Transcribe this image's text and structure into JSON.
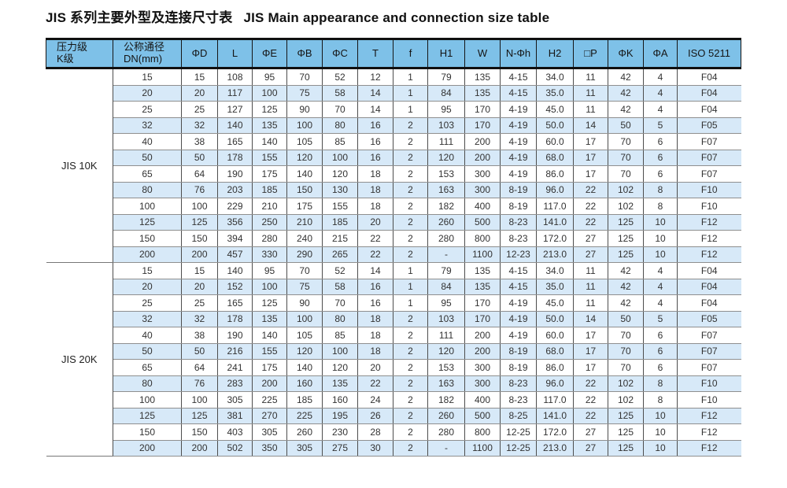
{
  "header": {
    "title_zh": "JIS 系列主要外型及连接尺寸表",
    "title_en": "JIS Main appearance and connection size table"
  },
  "table": {
    "columns": [
      [
        "压力级",
        "K级"
      ],
      [
        "公称通径",
        "DN(mm)"
      ],
      [
        "ΦD"
      ],
      [
        "L"
      ],
      [
        "ΦE"
      ],
      [
        "ΦB"
      ],
      [
        "ΦC"
      ],
      [
        "T"
      ],
      [
        "f"
      ],
      [
        "H1"
      ],
      [
        "W"
      ],
      [
        "N-Φh"
      ],
      [
        "H2"
      ],
      [
        "□P"
      ],
      [
        "ΦK"
      ],
      [
        "ΦA"
      ],
      [
        "ISO 5211"
      ]
    ],
    "groups": [
      {
        "label": "JIS 10K",
        "rows": [
          [
            "15",
            "15",
            "108",
            "95",
            "70",
            "52",
            "12",
            "1",
            "79",
            "135",
            "4-15",
            "34.0",
            "11",
            "42",
            "4",
            "F04"
          ],
          [
            "20",
            "20",
            "117",
            "100",
            "75",
            "58",
            "14",
            "1",
            "84",
            "135",
            "4-15",
            "35.0",
            "11",
            "42",
            "4",
            "F04"
          ],
          [
            "25",
            "25",
            "127",
            "125",
            "90",
            "70",
            "14",
            "1",
            "95",
            "170",
            "4-19",
            "45.0",
            "11",
            "42",
            "4",
            "F04"
          ],
          [
            "32",
            "32",
            "140",
            "135",
            "100",
            "80",
            "16",
            "2",
            "103",
            "170",
            "4-19",
            "50.0",
            "14",
            "50",
            "5",
            "F05"
          ],
          [
            "40",
            "38",
            "165",
            "140",
            "105",
            "85",
            "16",
            "2",
            "111",
            "200",
            "4-19",
            "60.0",
            "17",
            "70",
            "6",
            "F07"
          ],
          [
            "50",
            "50",
            "178",
            "155",
            "120",
            "100",
            "16",
            "2",
            "120",
            "200",
            "4-19",
            "68.0",
            "17",
            "70",
            "6",
            "F07"
          ],
          [
            "65",
            "64",
            "190",
            "175",
            "140",
            "120",
            "18",
            "2",
            "153",
            "300",
            "4-19",
            "86.0",
            "17",
            "70",
            "6",
            "F07"
          ],
          [
            "80",
            "76",
            "203",
            "185",
            "150",
            "130",
            "18",
            "2",
            "163",
            "300",
            "8-19",
            "96.0",
            "22",
            "102",
            "8",
            "F10"
          ],
          [
            "100",
            "100",
            "229",
            "210",
            "175",
            "155",
            "18",
            "2",
            "182",
            "400",
            "8-19",
            "117.0",
            "22",
            "102",
            "8",
            "F10"
          ],
          [
            "125",
            "125",
            "356",
            "250",
            "210",
            "185",
            "20",
            "2",
            "260",
            "500",
            "8-23",
            "141.0",
            "22",
            "125",
            "10",
            "F12"
          ],
          [
            "150",
            "150",
            "394",
            "280",
            "240",
            "215",
            "22",
            "2",
            "280",
            "800",
            "8-23",
            "172.0",
            "27",
            "125",
            "10",
            "F12"
          ],
          [
            "200",
            "200",
            "457",
            "330",
            "290",
            "265",
            "22",
            "2",
            "-",
            "1100",
            "12-23",
            "213.0",
            "27",
            "125",
            "10",
            "F12"
          ]
        ]
      },
      {
        "label": "JIS 20K",
        "rows": [
          [
            "15",
            "15",
            "140",
            "95",
            "70",
            "52",
            "14",
            "1",
            "79",
            "135",
            "4-15",
            "34.0",
            "11",
            "42",
            "4",
            "F04"
          ],
          [
            "20",
            "20",
            "152",
            "100",
            "75",
            "58",
            "16",
            "1",
            "84",
            "135",
            "4-15",
            "35.0",
            "11",
            "42",
            "4",
            "F04"
          ],
          [
            "25",
            "25",
            "165",
            "125",
            "90",
            "70",
            "16",
            "1",
            "95",
            "170",
            "4-19",
            "45.0",
            "11",
            "42",
            "4",
            "F04"
          ],
          [
            "32",
            "32",
            "178",
            "135",
            "100",
            "80",
            "18",
            "2",
            "103",
            "170",
            "4-19",
            "50.0",
            "14",
            "50",
            "5",
            "F05"
          ],
          [
            "40",
            "38",
            "190",
            "140",
            "105",
            "85",
            "18",
            "2",
            "111",
            "200",
            "4-19",
            "60.0",
            "17",
            "70",
            "6",
            "F07"
          ],
          [
            "50",
            "50",
            "216",
            "155",
            "120",
            "100",
            "18",
            "2",
            "120",
            "200",
            "8-19",
            "68.0",
            "17",
            "70",
            "6",
            "F07"
          ],
          [
            "65",
            "64",
            "241",
            "175",
            "140",
            "120",
            "20",
            "2",
            "153",
            "300",
            "8-19",
            "86.0",
            "17",
            "70",
            "6",
            "F07"
          ],
          [
            "80",
            "76",
            "283",
            "200",
            "160",
            "135",
            "22",
            "2",
            "163",
            "300",
            "8-23",
            "96.0",
            "22",
            "102",
            "8",
            "F10"
          ],
          [
            "100",
            "100",
            "305",
            "225",
            "185",
            "160",
            "24",
            "2",
            "182",
            "400",
            "8-23",
            "117.0",
            "22",
            "102",
            "8",
            "F10"
          ],
          [
            "125",
            "125",
            "381",
            "270",
            "225",
            "195",
            "26",
            "2",
            "260",
            "500",
            "8-25",
            "141.0",
            "22",
            "125",
            "10",
            "F12"
          ],
          [
            "150",
            "150",
            "403",
            "305",
            "260",
            "230",
            "28",
            "2",
            "280",
            "800",
            "12-25",
            "172.0",
            "27",
            "125",
            "10",
            "F12"
          ],
          [
            "200",
            "200",
            "502",
            "350",
            "305",
            "275",
            "30",
            "2",
            "-",
            "1100",
            "12-25",
            "213.0",
            "27",
            "125",
            "10",
            "F12"
          ]
        ]
      }
    ]
  },
  "colors": {
    "header_bg": "#7EC1E8",
    "row_stripe": "#D7E9F8",
    "row_plain": "#FFFFFF",
    "heavy_border": "#101010",
    "light_border": "#8F8F8F"
  }
}
